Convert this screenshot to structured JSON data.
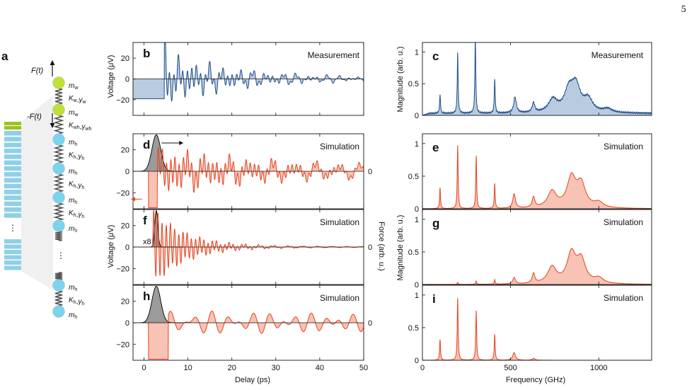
{
  "page_number": "5",
  "colors": {
    "measurement": "#1f4e8c",
    "measurement_fill": "#b9cbe0",
    "simulation": "#e8421e",
    "simulation_fill": "#f7c3b4",
    "force_fill": "#8a8a8a",
    "mass_w": "#bfe03a",
    "mass_h": "#7dd3ec",
    "layer_w": "#9cc31c",
    "layer_h": "#8fd0e6"
  },
  "schematic": {
    "panel_label": "a",
    "force_top": "F(t)",
    "force_bottom": "-F(t)",
    "labels": [
      "mw",
      "Kw,γw",
      "mw",
      "Kwh,γwh",
      "mh",
      "Kh,γh",
      "mh",
      "Kh,γh",
      "mh",
      "Kh,γh",
      "mh",
      "⋮",
      "mh",
      "Kh,γh",
      "mh"
    ],
    "ellipsis": "⋮"
  },
  "axes_labels": {
    "time_ylabel": "Voltage (μV)",
    "time_xlabel": "Delay (ps)",
    "force_label": "Force (arb. u.)",
    "freq_ylabel": "Magnitude (arb. u.)",
    "freq_xlabel": "Frequency (GHz)",
    "scale_note": "x8"
  },
  "chart_data": [
    {
      "panel": "b",
      "type": "line",
      "title": "Measurement",
      "xlim": [
        -2.5,
        50
      ],
      "ylim": [
        -35,
        35
      ],
      "yticks": [
        -20,
        0,
        20
      ],
      "series": [
        {
          "color": "measurement"
        }
      ]
    },
    {
      "panel": "d",
      "type": "line",
      "title": "Simulation",
      "xlim": [
        -2.5,
        50
      ],
      "ylim": [
        -35,
        35
      ],
      "yticks": [
        -20,
        0,
        20
      ],
      "right_tick": "0",
      "series": [
        {
          "color": "simulation"
        },
        {
          "color": "force"
        }
      ]
    },
    {
      "panel": "f",
      "type": "line",
      "title": "Simulation",
      "xlim": [
        -2.5,
        50
      ],
      "ylim": [
        -35,
        35
      ],
      "yticks": [
        -20,
        0,
        20
      ],
      "right_tick": "0",
      "series": [
        {
          "color": "simulation"
        },
        {
          "color": "force"
        }
      ]
    },
    {
      "panel": "h",
      "type": "line",
      "title": "Simulation",
      "xlim": [
        -2.5,
        50
      ],
      "ylim": [
        -35,
        35
      ],
      "yticks": [
        -20,
        0,
        20
      ],
      "xticks": [
        0,
        10,
        20,
        30,
        40,
        50
      ],
      "right_tick": "0",
      "series": [
        {
          "color": "simulation"
        },
        {
          "color": "force"
        }
      ]
    },
    {
      "panel": "c",
      "type": "line",
      "title": "Measurement",
      "xlim": [
        0,
        1300
      ],
      "ylim": [
        0,
        1.15
      ],
      "yticks": [
        0,
        0.5,
        1
      ],
      "peaks": [
        [
          100,
          0.3
        ],
        [
          200,
          0.95
        ],
        [
          300,
          1.2
        ],
        [
          410,
          0.55
        ],
        [
          525,
          0.25
        ],
        [
          630,
          0.15
        ],
        [
          740,
          0.2
        ],
        [
          830,
          0.32
        ],
        [
          870,
          0.4
        ],
        [
          940,
          0.2
        ],
        [
          1050,
          0.06
        ]
      ]
    },
    {
      "panel": "e",
      "type": "line",
      "title": "Simulation",
      "xlim": [
        0,
        1300
      ],
      "ylim": [
        0,
        1.15
      ],
      "yticks": [
        0,
        0.5,
        1
      ],
      "peaks": [
        [
          100,
          0.32
        ],
        [
          200,
          0.97
        ],
        [
          305,
          0.81
        ],
        [
          410,
          0.38
        ],
        [
          520,
          0.22
        ],
        [
          630,
          0.16
        ],
        [
          735,
          0.25
        ],
        [
          845,
          0.45
        ],
        [
          900,
          0.35
        ],
        [
          1000,
          0.08
        ]
      ]
    },
    {
      "panel": "g",
      "type": "line",
      "title": "Simulation",
      "xlim": [
        0,
        1300
      ],
      "ylim": [
        0,
        1.15
      ],
      "yticks": [
        0,
        0.5,
        1
      ],
      "peaks": [
        [
          200,
          0.03
        ],
        [
          305,
          0.05
        ],
        [
          410,
          0.07
        ],
        [
          520,
          0.1
        ],
        [
          630,
          0.15
        ],
        [
          735,
          0.25
        ],
        [
          845,
          0.45
        ],
        [
          900,
          0.35
        ],
        [
          1000,
          0.08
        ]
      ]
    },
    {
      "panel": "i",
      "type": "line",
      "title": "Simulation",
      "xlim": [
        0,
        1300
      ],
      "ylim": [
        0,
        1.15
      ],
      "yticks": [
        0,
        0.5,
        1
      ],
      "xticks": [
        0,
        500,
        1000
      ],
      "peaks": [
        [
          100,
          0.32
        ],
        [
          200,
          0.95
        ],
        [
          305,
          0.76
        ],
        [
          410,
          0.4
        ],
        [
          520,
          0.12
        ],
        [
          630,
          0.03
        ]
      ]
    }
  ]
}
